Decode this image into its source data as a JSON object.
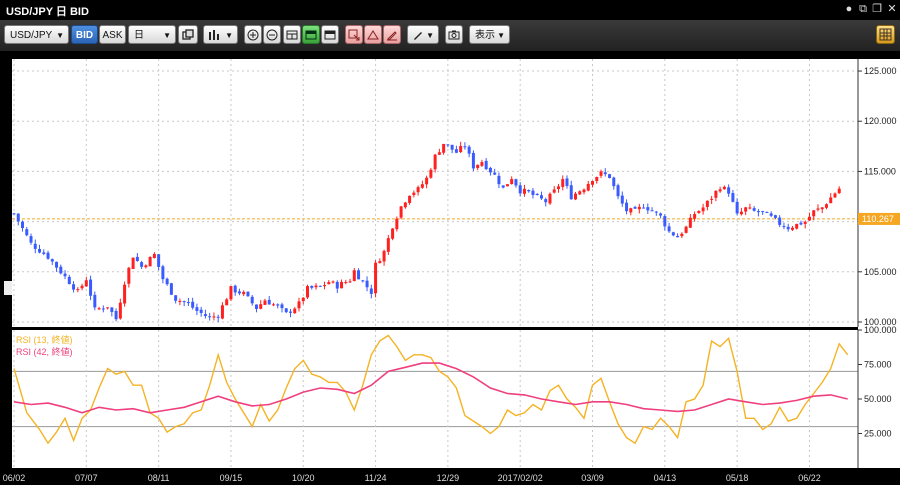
{
  "window": {
    "title": "USD/JPY 日 BID",
    "buttons": [
      "●",
      "⧉",
      "❐",
      "✕"
    ]
  },
  "toolbar": {
    "symbol": "USD/JPY",
    "bid_label": "BID",
    "ask_label": "ASK",
    "period": "日",
    "display_label": "表示",
    "icons": [
      "clone-icon",
      "bar-chart-icon",
      "zoom-in-icon",
      "zoom-out-icon",
      "layout-icon",
      "window-green-icon",
      "window-icon",
      "draw-arrow-icon",
      "draw-shape-icon",
      "draw-edit-icon",
      "pen-icon",
      "screenshot-icon",
      "settings-icon"
    ]
  },
  "colors": {
    "up": "#ff2020",
    "down": "#3a5cff",
    "rsi13": "#f5b323",
    "rsi42": "#ef3f7e",
    "current_price": "#f5a623",
    "grid": "#c8c8c8"
  },
  "chart_data": {
    "type": "candlestick",
    "price_axis": {
      "ticks": [
        "125.000",
        "120.000",
        "115.000",
        "110.000",
        "105.000",
        "100.000"
      ],
      "range": [
        99.5,
        126.2
      ]
    },
    "current_price": 110.267,
    "current_price_label": "110.267",
    "x_axis": {
      "tick_labels": [
        "06/02",
        "07/07",
        "08/11",
        "09/15",
        "10/20",
        "11/24",
        "12/29",
        "2017/02/02",
        "03/09",
        "04/13",
        "05/18",
        "06/22"
      ]
    },
    "close_path": [
      [
        0,
        110.8
      ],
      [
        4,
        107.8
      ],
      [
        8,
        106.5
      ],
      [
        12,
        104.5
      ],
      [
        15,
        103.0
      ],
      [
        17,
        104.3
      ],
      [
        19,
        101.2
      ],
      [
        22,
        101.6
      ],
      [
        24,
        100.3
      ],
      [
        26,
        104.0
      ],
      [
        28,
        106.6
      ],
      [
        30,
        105.5
      ],
      [
        33,
        106.7
      ],
      [
        35,
        104.3
      ],
      [
        38,
        102.3
      ],
      [
        41,
        101.8
      ],
      [
        43,
        101.1
      ],
      [
        46,
        100.4
      ],
      [
        48,
        100.7
      ],
      [
        51,
        103.3
      ],
      [
        54,
        102.8
      ],
      [
        57,
        101.4
      ],
      [
        59,
        102.2
      ],
      [
        62,
        101.5
      ],
      [
        64,
        100.8
      ],
      [
        67,
        101.8
      ],
      [
        69,
        103.3
      ],
      [
        72,
        103.5
      ],
      [
        74,
        104.0
      ],
      [
        76,
        103.6
      ],
      [
        79,
        104.2
      ],
      [
        80,
        105.1
      ],
      [
        82,
        104.0
      ],
      [
        84,
        103.0
      ],
      [
        85,
        105.7
      ],
      [
        87,
        107.0
      ],
      [
        89,
        109.6
      ],
      [
        91,
        111.5
      ],
      [
        93,
        112.8
      ],
      [
        95,
        113.2
      ],
      [
        97,
        114.3
      ],
      [
        99,
        116.5
      ],
      [
        101,
        117.8
      ],
      [
        104,
        116.9
      ],
      [
        106,
        117.6
      ],
      [
        108,
        115.5
      ],
      [
        110,
        116.0
      ],
      [
        113,
        114.6
      ],
      [
        115,
        113.3
      ],
      [
        117,
        114.4
      ],
      [
        119,
        113.1
      ],
      [
        121,
        112.9
      ],
      [
        123,
        112.4
      ],
      [
        125,
        112.0
      ],
      [
        127,
        113.0
      ],
      [
        129,
        114.2
      ],
      [
        131,
        112.5
      ],
      [
        134,
        113.4
      ],
      [
        136,
        114.3
      ],
      [
        138,
        114.8
      ],
      [
        140,
        114.5
      ],
      [
        142,
        112.4
      ],
      [
        144,
        111.1
      ],
      [
        146,
        111.0
      ],
      [
        148,
        111.6
      ],
      [
        150,
        111.1
      ],
      [
        152,
        110.5
      ],
      [
        154,
        109.0
      ],
      [
        156,
        108.5
      ],
      [
        158,
        109.4
      ],
      [
        160,
        110.8
      ],
      [
        162,
        111.4
      ],
      [
        164,
        112.4
      ],
      [
        166,
        113.5
      ],
      [
        168,
        113.0
      ],
      [
        170,
        110.6
      ],
      [
        172,
        111.3
      ],
      [
        174,
        111.0
      ],
      [
        176,
        110.9
      ],
      [
        178,
        110.4
      ],
      [
        180,
        109.8
      ],
      [
        182,
        109.4
      ],
      [
        184,
        109.7
      ],
      [
        186,
        110.0
      ],
      [
        188,
        111.0
      ],
      [
        190,
        111.4
      ],
      [
        192,
        112.4
      ],
      [
        194,
        113.3
      ]
    ],
    "rsi_axis": {
      "ticks": [
        "100.000",
        "75.000",
        "50.000",
        "25.000"
      ],
      "range": [
        0,
        100
      ],
      "guide_lines": [
        70,
        30
      ]
    },
    "series": [
      {
        "name": "RSI (13, 終値)",
        "points": [
          [
            0,
            72
          ],
          [
            3,
            40
          ],
          [
            6,
            28
          ],
          [
            8,
            18
          ],
          [
            10,
            26
          ],
          [
            12,
            36
          ],
          [
            14,
            20
          ],
          [
            16,
            36
          ],
          [
            18,
            42
          ],
          [
            20,
            58
          ],
          [
            22,
            72
          ],
          [
            24,
            68
          ],
          [
            26,
            70
          ],
          [
            28,
            60
          ],
          [
            30,
            60
          ],
          [
            32,
            40
          ],
          [
            34,
            36
          ],
          [
            36,
            26
          ],
          [
            38,
            30
          ],
          [
            40,
            32
          ],
          [
            42,
            40
          ],
          [
            44,
            42
          ],
          [
            46,
            60
          ],
          [
            48,
            82
          ],
          [
            50,
            62
          ],
          [
            52,
            50
          ],
          [
            54,
            40
          ],
          [
            56,
            30
          ],
          [
            58,
            46
          ],
          [
            60,
            34
          ],
          [
            62,
            42
          ],
          [
            64,
            58
          ],
          [
            66,
            72
          ],
          [
            68,
            78
          ],
          [
            70,
            68
          ],
          [
            72,
            66
          ],
          [
            74,
            62
          ],
          [
            76,
            62
          ],
          [
            78,
            55
          ],
          [
            80,
            42
          ],
          [
            82,
            60
          ],
          [
            84,
            82
          ],
          [
            86,
            92
          ],
          [
            88,
            96
          ],
          [
            90,
            88
          ],
          [
            92,
            78
          ],
          [
            94,
            82
          ],
          [
            96,
            82
          ],
          [
            98,
            80
          ],
          [
            100,
            70
          ],
          [
            102,
            66
          ],
          [
            104,
            58
          ],
          [
            106,
            38
          ],
          [
            108,
            34
          ],
          [
            110,
            30
          ],
          [
            112,
            25
          ],
          [
            114,
            30
          ],
          [
            116,
            42
          ],
          [
            118,
            38
          ],
          [
            120,
            40
          ],
          [
            122,
            46
          ],
          [
            124,
            42
          ],
          [
            126,
            56
          ],
          [
            128,
            60
          ],
          [
            130,
            50
          ],
          [
            132,
            44
          ],
          [
            134,
            36
          ],
          [
            136,
            60
          ],
          [
            138,
            65
          ],
          [
            140,
            48
          ],
          [
            142,
            32
          ],
          [
            144,
            22
          ],
          [
            146,
            18
          ],
          [
            148,
            30
          ],
          [
            150,
            28
          ],
          [
            152,
            36
          ],
          [
            154,
            30
          ],
          [
            156,
            22
          ],
          [
            158,
            48
          ],
          [
            160,
            50
          ],
          [
            162,
            60
          ],
          [
            164,
            92
          ],
          [
            166,
            88
          ],
          [
            168,
            94
          ],
          [
            170,
            70
          ],
          [
            172,
            36
          ],
          [
            174,
            36
          ],
          [
            176,
            28
          ],
          [
            178,
            32
          ],
          [
            180,
            44
          ],
          [
            182,
            34
          ],
          [
            184,
            36
          ],
          [
            186,
            46
          ],
          [
            188,
            54
          ],
          [
            190,
            62
          ],
          [
            192,
            72
          ],
          [
            194,
            90
          ],
          [
            196,
            82
          ]
        ]
      },
      {
        "name": "RSI (42, 終値)",
        "points": [
          [
            0,
            48
          ],
          [
            4,
            46
          ],
          [
            8,
            47
          ],
          [
            12,
            44
          ],
          [
            16,
            40
          ],
          [
            20,
            44
          ],
          [
            24,
            42
          ],
          [
            28,
            43
          ],
          [
            32,
            40
          ],
          [
            36,
            42
          ],
          [
            40,
            44
          ],
          [
            44,
            48
          ],
          [
            48,
            52
          ],
          [
            52,
            48
          ],
          [
            56,
            45
          ],
          [
            60,
            46
          ],
          [
            64,
            50
          ],
          [
            68,
            55
          ],
          [
            72,
            58
          ],
          [
            76,
            57
          ],
          [
            80,
            54
          ],
          [
            84,
            60
          ],
          [
            88,
            70
          ],
          [
            92,
            73
          ],
          [
            96,
            76
          ],
          [
            100,
            76
          ],
          [
            104,
            72
          ],
          [
            108,
            66
          ],
          [
            112,
            58
          ],
          [
            116,
            54
          ],
          [
            120,
            53
          ],
          [
            124,
            50
          ],
          [
            128,
            48
          ],
          [
            132,
            46
          ],
          [
            136,
            48
          ],
          [
            140,
            48
          ],
          [
            144,
            46
          ],
          [
            148,
            43
          ],
          [
            152,
            42
          ],
          [
            156,
            41
          ],
          [
            160,
            42
          ],
          [
            164,
            46
          ],
          [
            168,
            50
          ],
          [
            172,
            48
          ],
          [
            176,
            46
          ],
          [
            180,
            47
          ],
          [
            184,
            49
          ],
          [
            188,
            52
          ],
          [
            192,
            53
          ],
          [
            196,
            50
          ]
        ]
      }
    ]
  }
}
